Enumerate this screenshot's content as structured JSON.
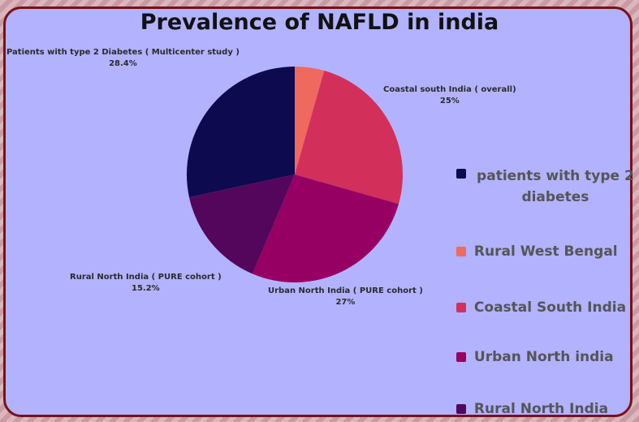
{
  "chart_data": {
    "type": "pie",
    "title": "Prevalence of NAFLD in india",
    "slices": [
      {
        "value": 28.4,
        "color": "#0d0a4f",
        "label_name": "Patients with type 2 Diabetes ( Multicenter study )",
        "label_value": "28.4%",
        "legend": "patients with type 2 diabetes"
      },
      {
        "value": 4.4,
        "color": "#f0695e",
        "label_name": "",
        "label_value": "",
        "legend": "Rural West Bengal"
      },
      {
        "value": 25,
        "color": "#d2305a",
        "label_name": "Coastal south India ( overall)",
        "label_value": "25%",
        "legend": "Coastal South India"
      },
      {
        "value": 27,
        "color": "#970062",
        "label_name": "Urban North India ( PURE cohort )",
        "label_value": "27%",
        "legend": "Urban North india"
      },
      {
        "value": 15.2,
        "color": "#54065c",
        "label_name": "Rural North India ( PURE cohort )",
        "label_value": "15.2%",
        "legend": "Rural North India"
      }
    ],
    "legend_position": "right"
  }
}
